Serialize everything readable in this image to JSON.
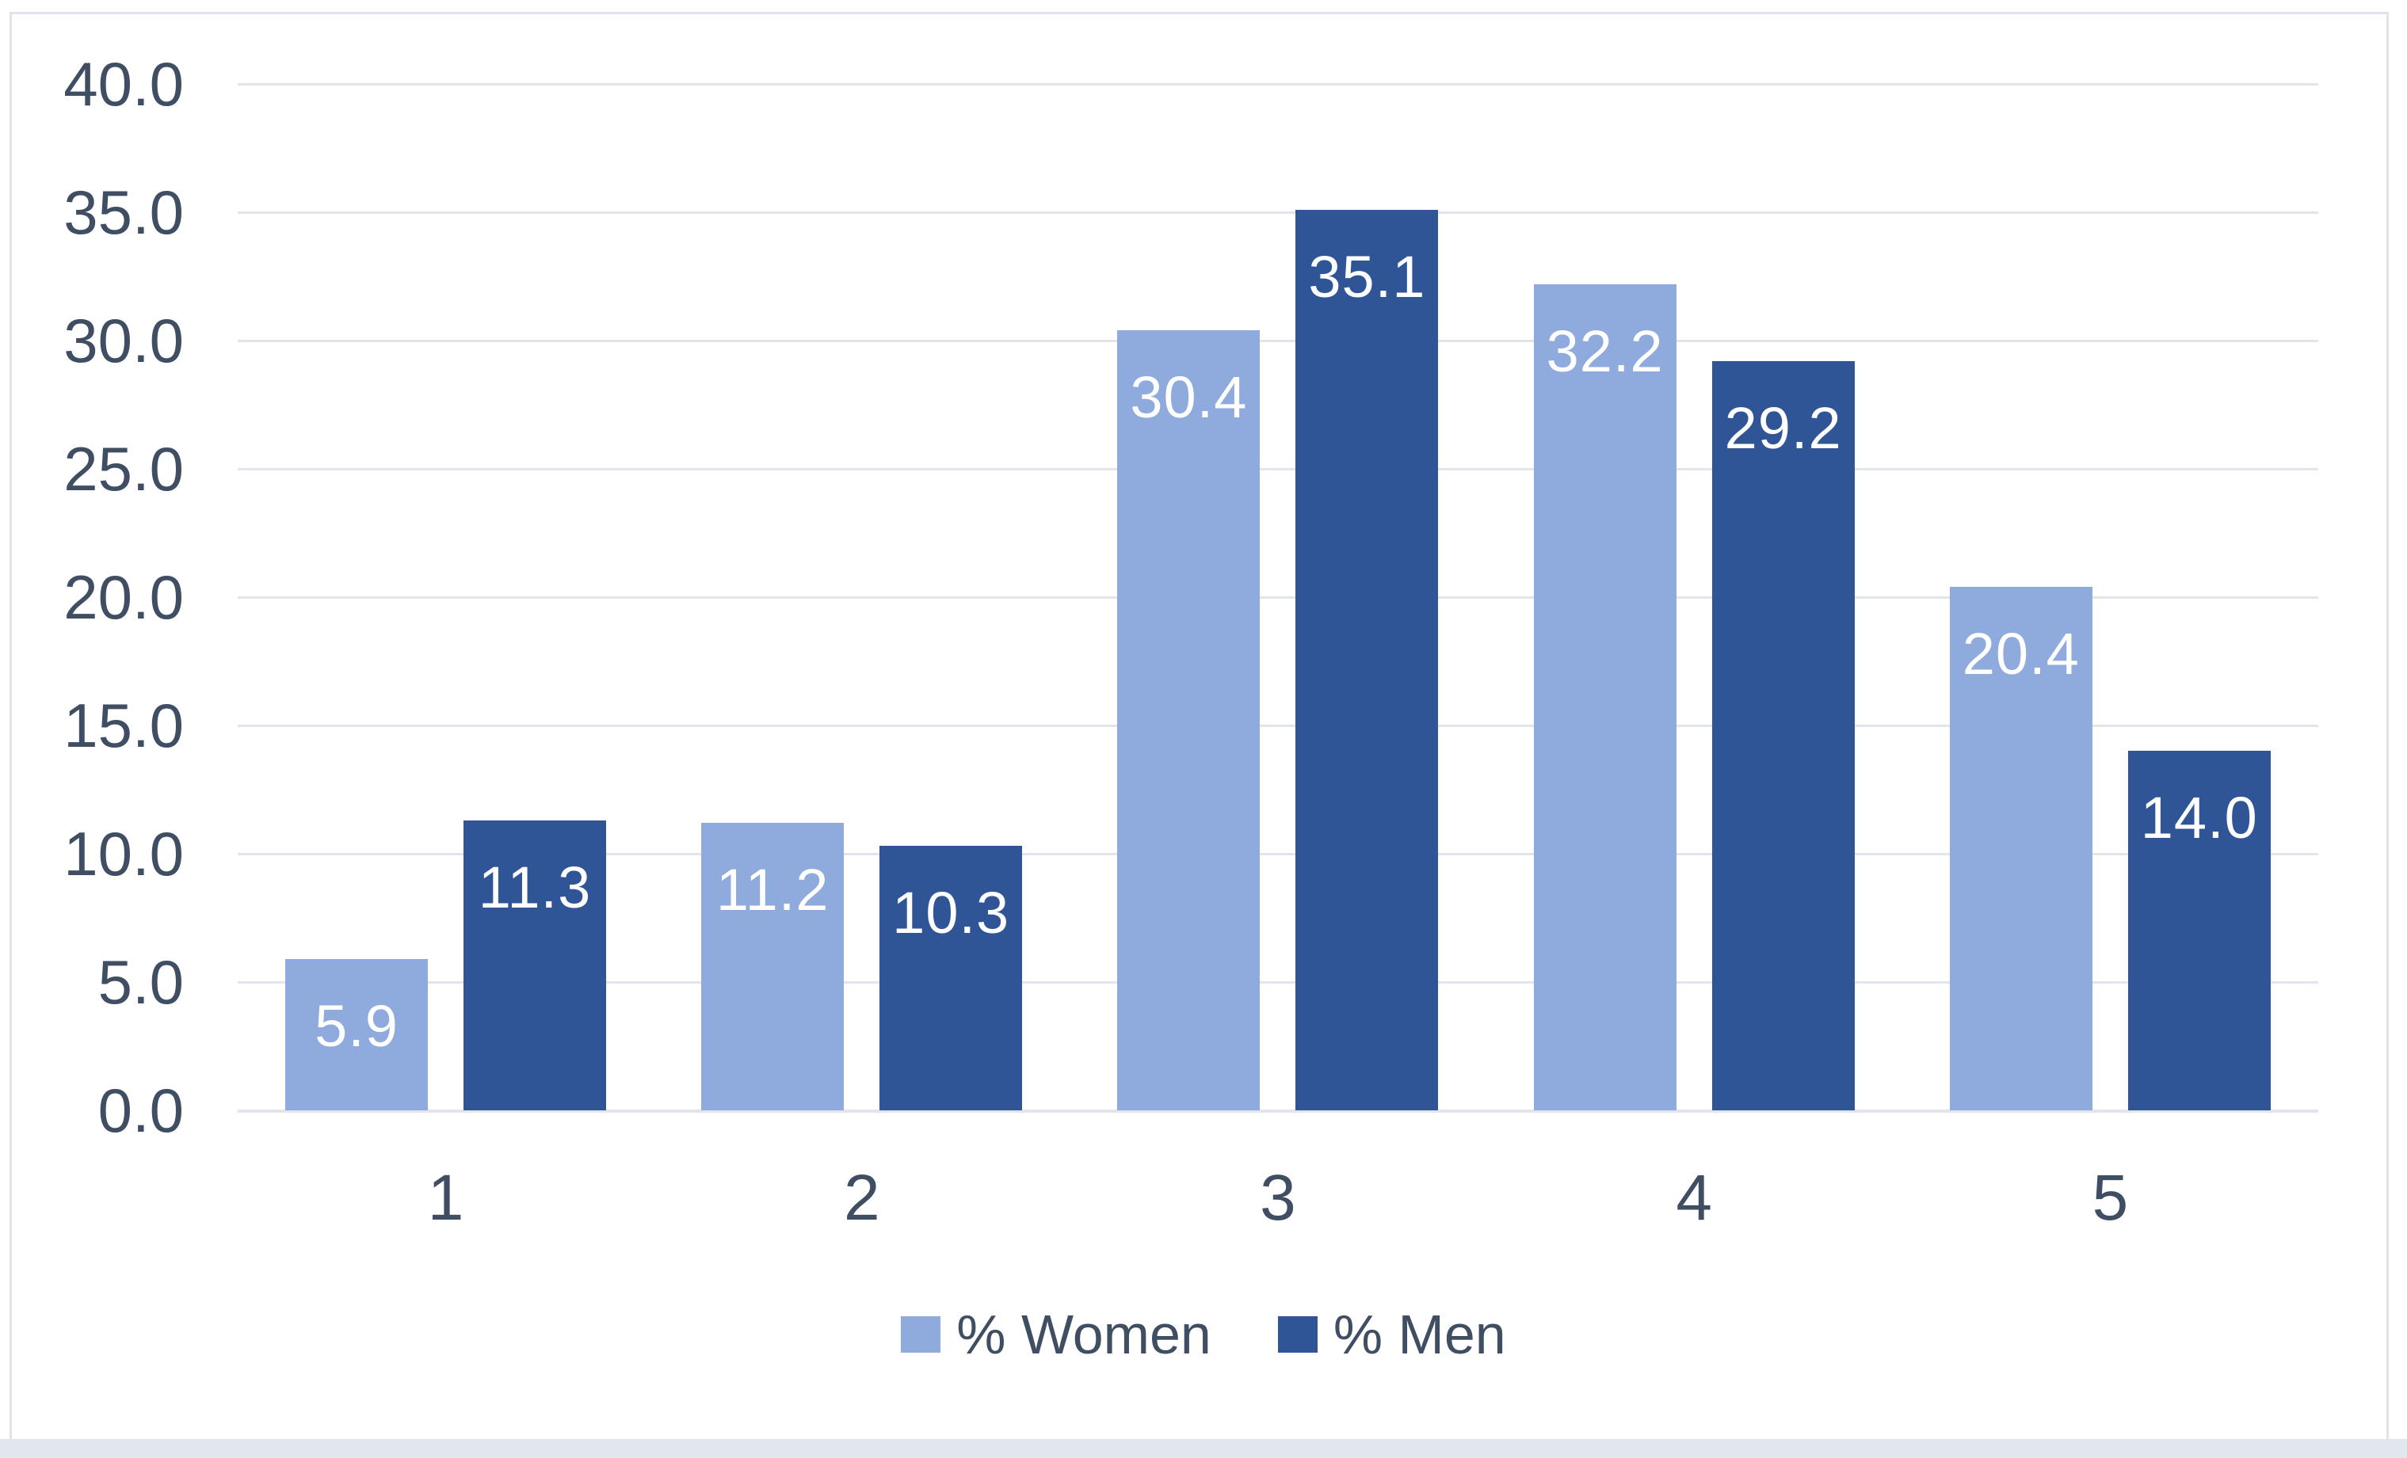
{
  "chart_data": {
    "type": "bar",
    "title": "",
    "xlabel": "",
    "ylabel": "",
    "categories": [
      "1",
      "2",
      "3",
      "4",
      "5"
    ],
    "series": [
      {
        "name": "% Women",
        "color": "#8FAADC",
        "values": [
          5.9,
          11.2,
          30.4,
          32.2,
          20.4
        ],
        "labels": [
          "5.9",
          "11.2",
          "30.4",
          "32.2",
          "20.4"
        ]
      },
      {
        "name": "% Men",
        "color": "#2F5597",
        "values": [
          11.3,
          10.3,
          35.1,
          29.2,
          14.0
        ],
        "labels": [
          "11.3",
          "10.3",
          "35.1",
          "29.2",
          "14.0"
        ]
      }
    ],
    "ylim": [
      0,
      40
    ],
    "ytick_step": 5,
    "yticks": [
      40,
      35,
      30,
      25,
      20,
      15,
      10,
      5,
      0
    ],
    "ytick_labels": [
      "40.0",
      "35.0",
      "30.0",
      "25.0",
      "20.0",
      "15.0",
      "10.0",
      "5.0",
      "0.0"
    ],
    "grid": true,
    "gridline_color": "#E2E6EC",
    "data_label_position": "inside-end",
    "data_label_color": "#FFFFFF",
    "legend_position": "bottom",
    "legend_entries": [
      "% Women",
      "% Men"
    ]
  },
  "colors": {
    "women_bar": "#8FAADC",
    "men_bar": "#2F5597",
    "axis_text": "#3F4E63",
    "gridline": "#E2E6EC",
    "chart_border": "#E0E4EA",
    "bottom_strip": "#E2E6ED",
    "background": "#FFFFFF"
  }
}
